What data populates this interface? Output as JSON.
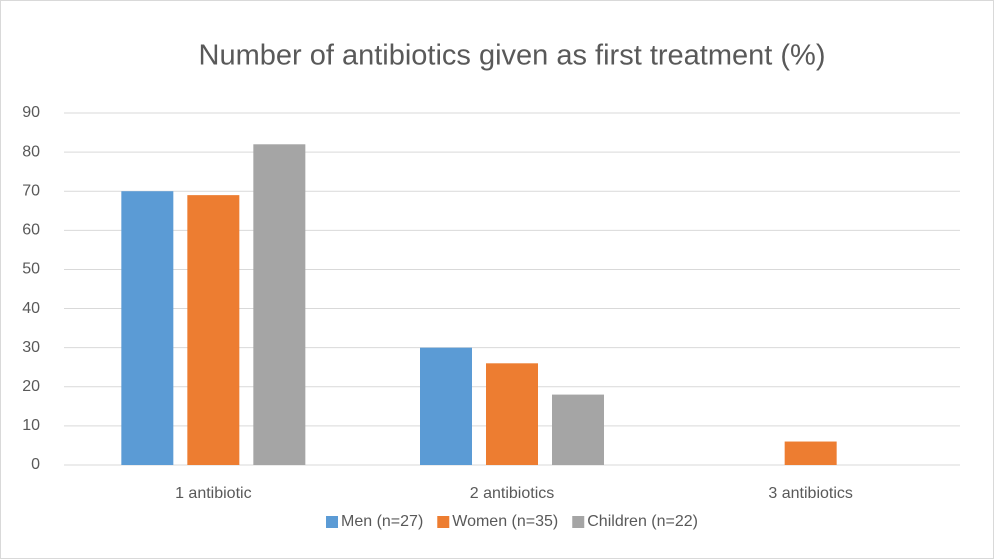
{
  "chart_data": {
    "type": "bar",
    "title": "Number of antibiotics given as first treatment (%)",
    "categories": [
      "1 antibiotic",
      "2 antibiotics",
      "3 antibiotics"
    ],
    "series": [
      {
        "name": "Men (n=27)",
        "color": "#5b9bd5",
        "values": [
          70,
          30,
          0
        ]
      },
      {
        "name": "Women (n=35)",
        "color": "#ed7d31",
        "values": [
          69,
          26,
          6
        ]
      },
      {
        "name": "Children (n=22)",
        "color": "#a5a5a5",
        "values": [
          82,
          18,
          0
        ]
      }
    ],
    "ylim": [
      0,
      90
    ],
    "yticks": [
      0,
      10,
      20,
      30,
      40,
      50,
      60,
      70,
      80,
      90
    ],
    "grid": true,
    "legend": "bottom"
  }
}
